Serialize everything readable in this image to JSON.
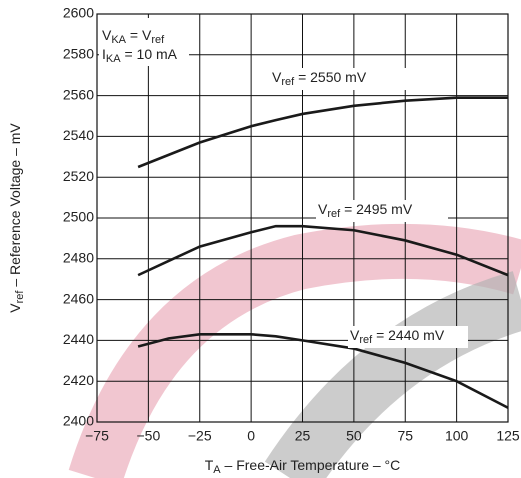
{
  "chart_data": {
    "type": "line",
    "annotation": [
      [
        {
          "t": "V"
        },
        {
          "sub": "KA"
        },
        {
          "t": " = V"
        },
        {
          "sub": "ref"
        }
      ],
      [
        {
          "t": "I"
        },
        {
          "sub": "KA"
        },
        {
          "t": " = 10 mA"
        }
      ]
    ],
    "xlabel": [
      {
        "t": "T"
      },
      {
        "sub": "A"
      },
      {
        "t": " – Free-Air Temperature –  °C"
      }
    ],
    "ylabel": [
      {
        "t": "V"
      },
      {
        "sub": "ref"
      },
      {
        "t": " – Reference Voltage – mV"
      }
    ],
    "x": [
      -55,
      -40,
      -25,
      0,
      12,
      25,
      50,
      75,
      100,
      125
    ],
    "series": [
      {
        "label": [
          {
            "t": "V"
          },
          {
            "sub": "ref"
          },
          {
            "t": " = 2550 mV"
          }
        ],
        "color": "#1a1a1a",
        "values": [
          2525,
          2531,
          2537,
          2545,
          2548,
          2551,
          2555,
          2557.5,
          2559,
          2559
        ]
      },
      {
        "label": [
          {
            "t": "V"
          },
          {
            "sub": "ref"
          },
          {
            "t": " = 2495 mV"
          }
        ],
        "color": "#1a1a1a",
        "values": [
          2472,
          2479,
          2486,
          2493,
          2496,
          2496,
          2494,
          2489,
          2482,
          2472
        ]
      },
      {
        "label": [
          {
            "t": "V"
          },
          {
            "sub": "ref"
          },
          {
            "t": " = 2440 mV"
          }
        ],
        "color": "#1a1a1a",
        "values": [
          2437,
          2441,
          2443,
          2443,
          2442,
          2440,
          2436,
          2429,
          2420,
          2407
        ]
      }
    ],
    "xlim": [
      -75,
      125
    ],
    "xticks": [
      {
        "value": -75,
        "label": "−75"
      },
      {
        "value": -50,
        "label": "−50"
      },
      {
        "value": -25,
        "label": "−25"
      },
      0,
      25,
      50,
      75,
      100,
      125
    ],
    "ylim": [
      2400,
      2600
    ],
    "yticks": [
      2400,
      2420,
      2440,
      2460,
      2480,
      2500,
      2520,
      2540,
      2560,
      2580,
      2600
    ],
    "grid": true
  }
}
